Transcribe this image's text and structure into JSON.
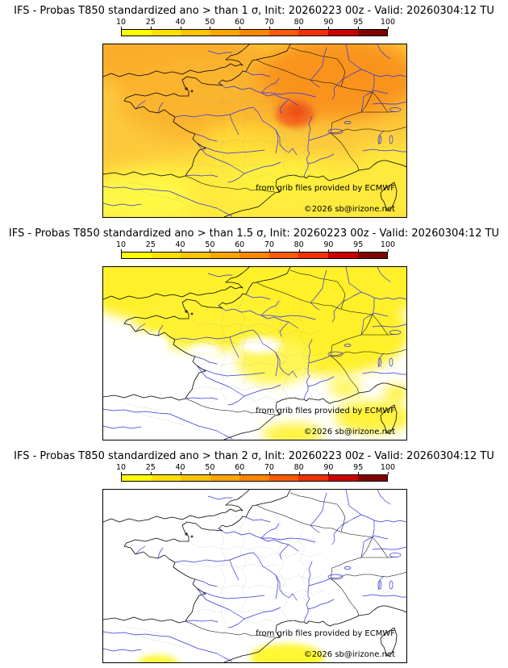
{
  "page": {
    "background": "#ffffff"
  },
  "colorbar": {
    "ticks": [
      "10",
      "25",
      "40",
      "50",
      "60",
      "70",
      "80",
      "90",
      "95",
      "100"
    ],
    "colors": [
      "#ffff00",
      "#ffe100",
      "#ffc300",
      "#ffa500",
      "#ff8700",
      "#ff5a00",
      "#f03000",
      "#c80000",
      "#800000"
    ]
  },
  "panels": [
    {
      "title": "IFS - Probas T850  standardized ano > than 1 σ, Init: 20260223 00z - Valid: 20260304:12 TU",
      "threshold": "> 1 σ",
      "attribution": "from grib files provided by ECMWF",
      "copyright": "©2026 sb@irizone.net"
    },
    {
      "title": "IFS - Probas T850  standardized ano > than 1.5 σ, Init: 20260223 00z - Valid: 20260304:12 TU",
      "threshold": "> 1.5 σ",
      "attribution": "from grib files provided by ECMWF",
      "copyright": "©2026 sb@irizone.net"
    },
    {
      "title": "IFS - Probas T850  standardized ano > than 2 σ, Init: 20260223 00z - Valid: 20260304:12 TU",
      "threshold": "> 2 σ",
      "attribution": "from grib files provided by ECMWF",
      "copyright": "©2026 sb@irizone.net"
    }
  ],
  "map_style": {
    "river_color": "#3333dd",
    "coast_color": "#000000",
    "admin_border_color": "#999999",
    "frame_color": "#000000",
    "field_yellow": "#fff02b",
    "field_orange": "#f9931f",
    "field_hotspot": "#ee4d15"
  }
}
